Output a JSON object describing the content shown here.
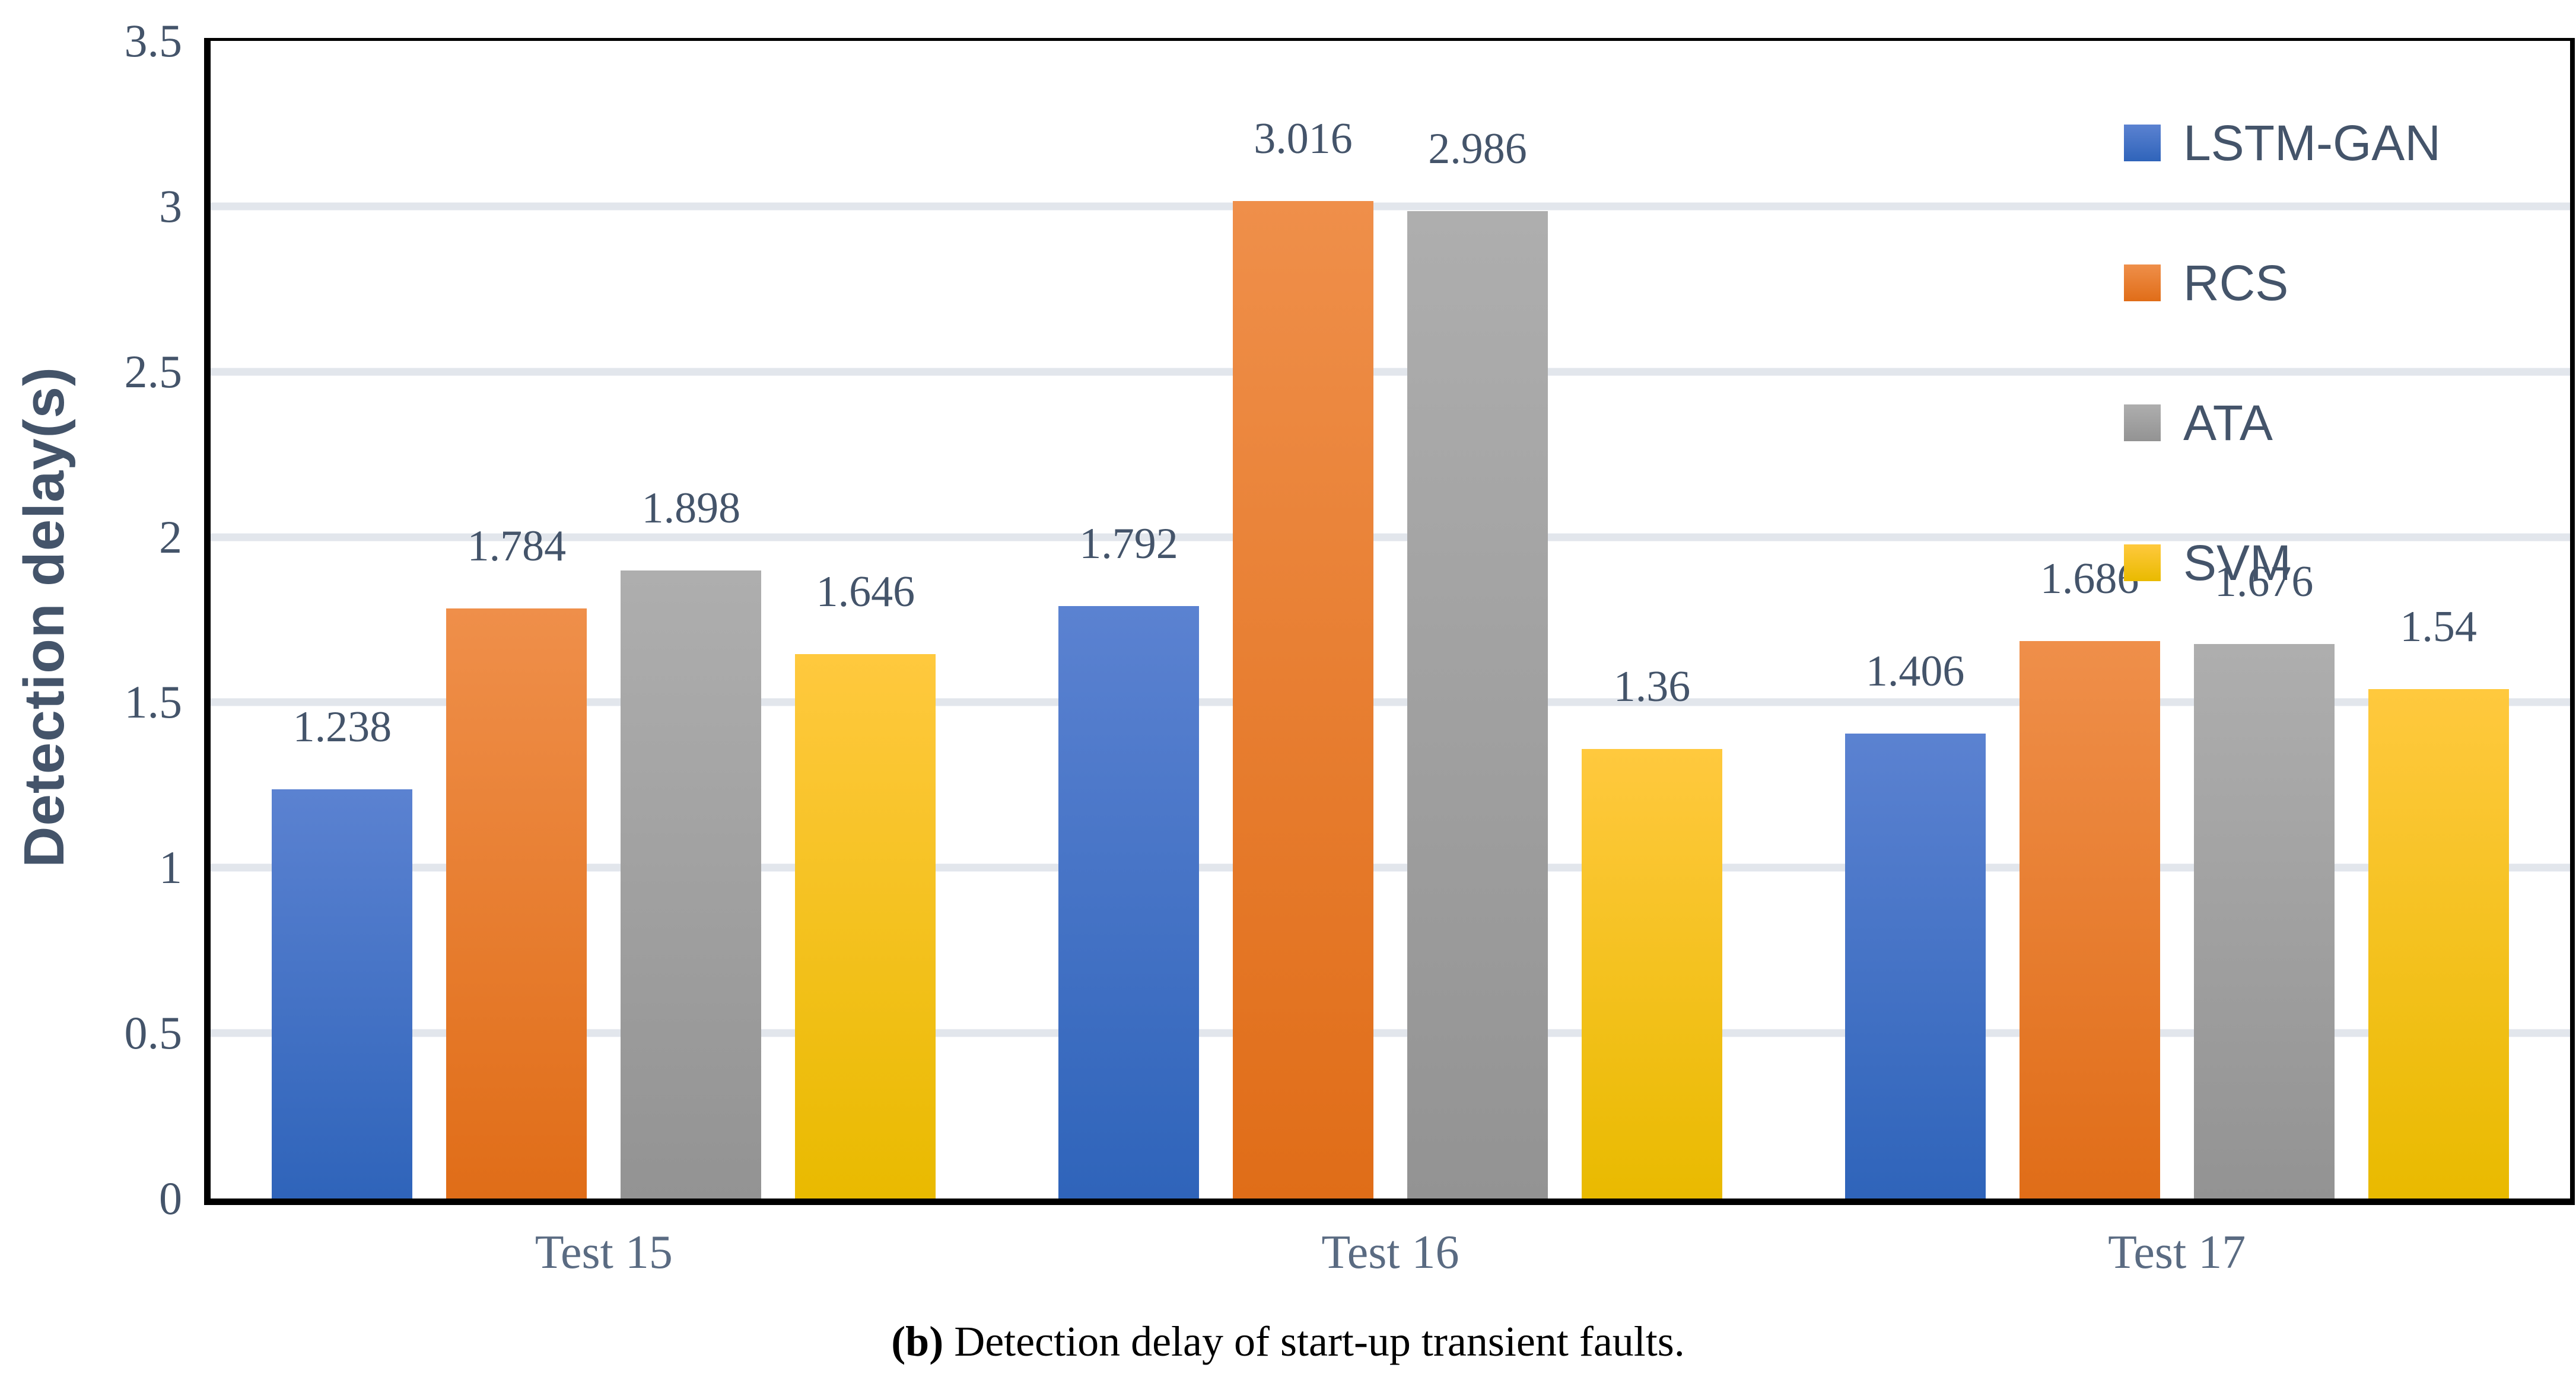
{
  "caption": {
    "prefix": "(b)",
    "text": " Detection delay of start-up transient faults."
  },
  "chart_data": {
    "type": "bar",
    "title": "",
    "xlabel": "",
    "ylabel": "Detection delay(s)",
    "ylim": [
      0,
      3.5
    ],
    "yticks": [
      0,
      0.5,
      1,
      1.5,
      2,
      2.5,
      3,
      3.5
    ],
    "grid": true,
    "legend_position": "inside-top-right",
    "categories": [
      "Test 15",
      "Test 16",
      "Test 17"
    ],
    "series": [
      {
        "name": "LSTM-GAN",
        "color": "#4472C4",
        "gradient": [
          "#5b82d1",
          "#2f64ba"
        ],
        "values": [
          1.238,
          1.792,
          1.406
        ],
        "labels": [
          "1.238",
          "1.792",
          "1.406"
        ]
      },
      {
        "name": "RCS",
        "color": "#ED7D31",
        "gradient": [
          "#ef8f4a",
          "#e06d18"
        ],
        "values": [
          1.784,
          3.016,
          1.686
        ],
        "labels": [
          "1.784",
          "3.016",
          "1.686"
        ]
      },
      {
        "name": "ATA",
        "color": "#A5A5A5",
        "gradient": [
          "#aeaeae",
          "#939393"
        ],
        "values": [
          1.898,
          2.986,
          1.676
        ],
        "labels": [
          "1.898",
          "2.986",
          "1.676"
        ]
      },
      {
        "name": "SVM",
        "color": "#FFC000",
        "gradient": [
          "#ffc93e",
          "#e9ba00"
        ],
        "values": [
          1.646,
          1.36,
          1.54
        ],
        "labels": [
          "1.646",
          "1.36",
          "1.54"
        ]
      }
    ],
    "gridline_color": "#e2e6ec",
    "label_color": "#44546a",
    "axis_label_color": "#5a6b82"
  }
}
